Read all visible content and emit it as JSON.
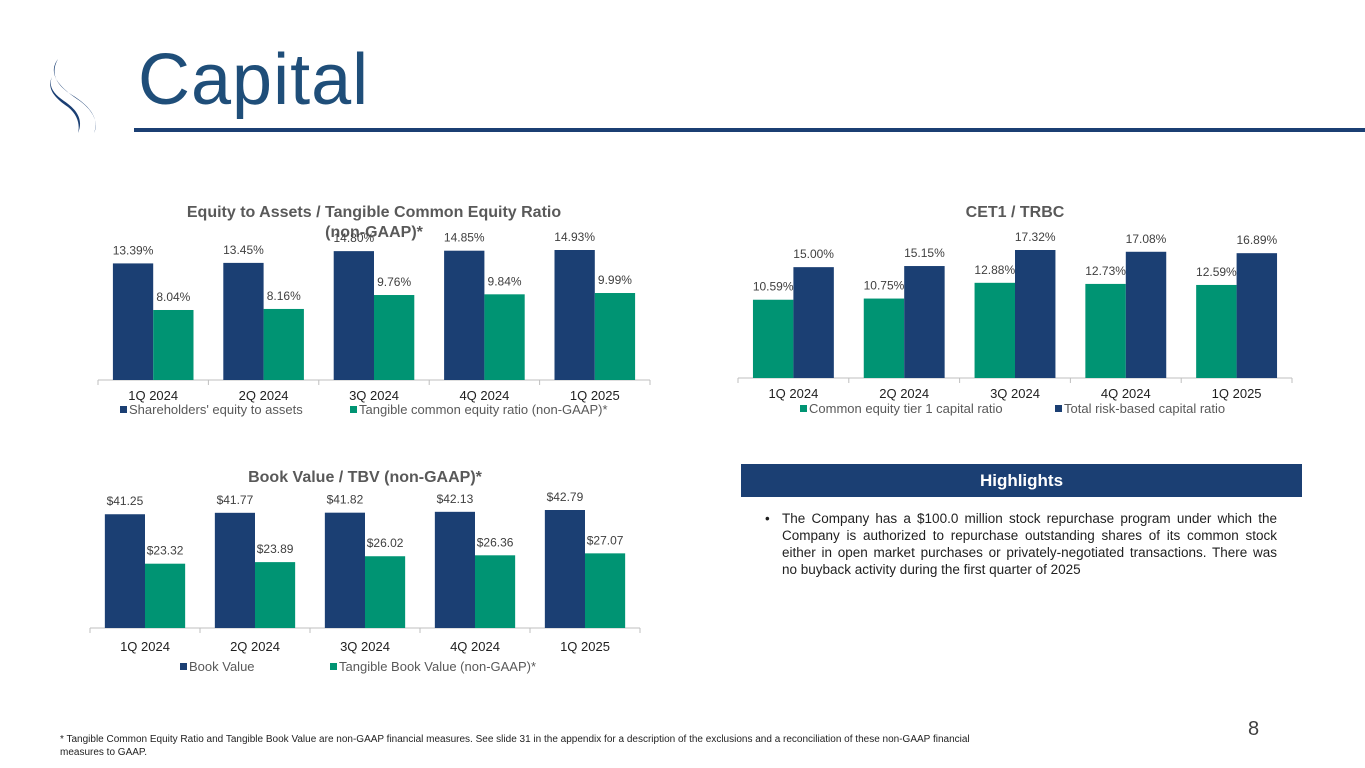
{
  "header": {
    "title": "Capital",
    "logo_icon": "company-swoosh-logo"
  },
  "colors": {
    "navy": "#1b3f73",
    "teal": "#009473",
    "title_blue": "#1f4e79"
  },
  "chart_data": [
    {
      "id": "equity",
      "type": "bar",
      "title": "Equity to Assets / Tangible Common Equity Ratio (non-GAAP)*",
      "title_lines": [
        "Equity to Assets / Tangible Common Equity Ratio",
        "(non-GAAP)*"
      ],
      "categories": [
        "1Q 2024",
        "2Q 2024",
        "3Q 2024",
        "4Q 2024",
        "1Q 2025"
      ],
      "series": [
        {
          "name": "Shareholders' equity to assets",
          "values": [
            13.39,
            13.45,
            14.8,
            14.85,
            14.93
          ],
          "labels": [
            "13.39%",
            "13.45%",
            "14.80%",
            "14.85%",
            "14.93%"
          ],
          "color": "#1b3f73"
        },
        {
          "name": "Tangible common equity ratio (non-GAAP)*",
          "values": [
            8.04,
            8.16,
            9.76,
            9.84,
            9.99
          ],
          "labels": [
            "8.04%",
            "8.16%",
            "9.76%",
            "9.84%",
            "9.99%"
          ],
          "color": "#009473"
        }
      ],
      "xlabel": "",
      "ylabel": "",
      "ylim": [
        0,
        14.93
      ],
      "grid": false,
      "legend": "bottom"
    },
    {
      "id": "cet1",
      "type": "bar",
      "title": "CET1 / TRBC",
      "title_lines": [
        "CET1 / TRBC"
      ],
      "categories": [
        "1Q 2024",
        "2Q 2024",
        "3Q 2024",
        "4Q 2024",
        "1Q 2025"
      ],
      "series": [
        {
          "name": "Common equity tier 1 capital ratio",
          "values": [
            10.59,
            10.75,
            12.88,
            12.73,
            12.59
          ],
          "labels": [
            "10.59%",
            "10.75%",
            "12.88%",
            "12.73%",
            "12.59%"
          ],
          "color": "#009473"
        },
        {
          "name": "Total risk-based capital ratio",
          "values": [
            15.0,
            15.15,
            17.32,
            17.08,
            16.89
          ],
          "labels": [
            "15.00%",
            "15.15%",
            "17.32%",
            "17.08%",
            "16.89%"
          ],
          "color": "#1b3f73"
        }
      ],
      "xlabel": "",
      "ylabel": "",
      "ylim": [
        0,
        17.32
      ],
      "grid": false,
      "legend": "bottom"
    },
    {
      "id": "bookvalue",
      "type": "bar",
      "title": "Book Value / TBV (non-GAAP)*",
      "title_lines": [
        "Book Value / TBV (non-GAAP)*"
      ],
      "categories": [
        "1Q 2024",
        "2Q 2024",
        "3Q 2024",
        "4Q 2024",
        "1Q 2025"
      ],
      "series": [
        {
          "name": "Book Value",
          "values": [
            41.25,
            41.77,
            41.82,
            42.13,
            42.79
          ],
          "labels": [
            "$41.25",
            "$41.77",
            "$41.82",
            "$42.13",
            "$42.79"
          ],
          "color": "#1b3f73"
        },
        {
          "name": "Tangible Book Value (non-GAAP)*",
          "values": [
            23.32,
            23.89,
            26.02,
            26.36,
            27.07
          ],
          "labels": [
            "$23.32",
            "$23.89",
            "$26.02",
            "$26.36",
            "$27.07"
          ],
          "color": "#009473"
        }
      ],
      "xlabel": "",
      "ylabel": "",
      "ylim": [
        0,
        42.79
      ],
      "grid": false,
      "legend": "bottom"
    }
  ],
  "highlights": {
    "header": "Highlights",
    "bullet_glyph": "•",
    "bullet": "The Company has a $100.0 million stock repurchase program under which the Company is authorized to repurchase outstanding shares of its common stock either in open market purchases or privately-negotiated transactions. There was no buyback activity during the first quarter of 2025"
  },
  "footnote": "* Tangible Common Equity Ratio and Tangible Book Value are non-GAAP financial measures. See slide 31 in the appendix for a description of the exclusions and a reconciliation of these non-GAAP financial measures to GAAP.",
  "page_number": "8"
}
